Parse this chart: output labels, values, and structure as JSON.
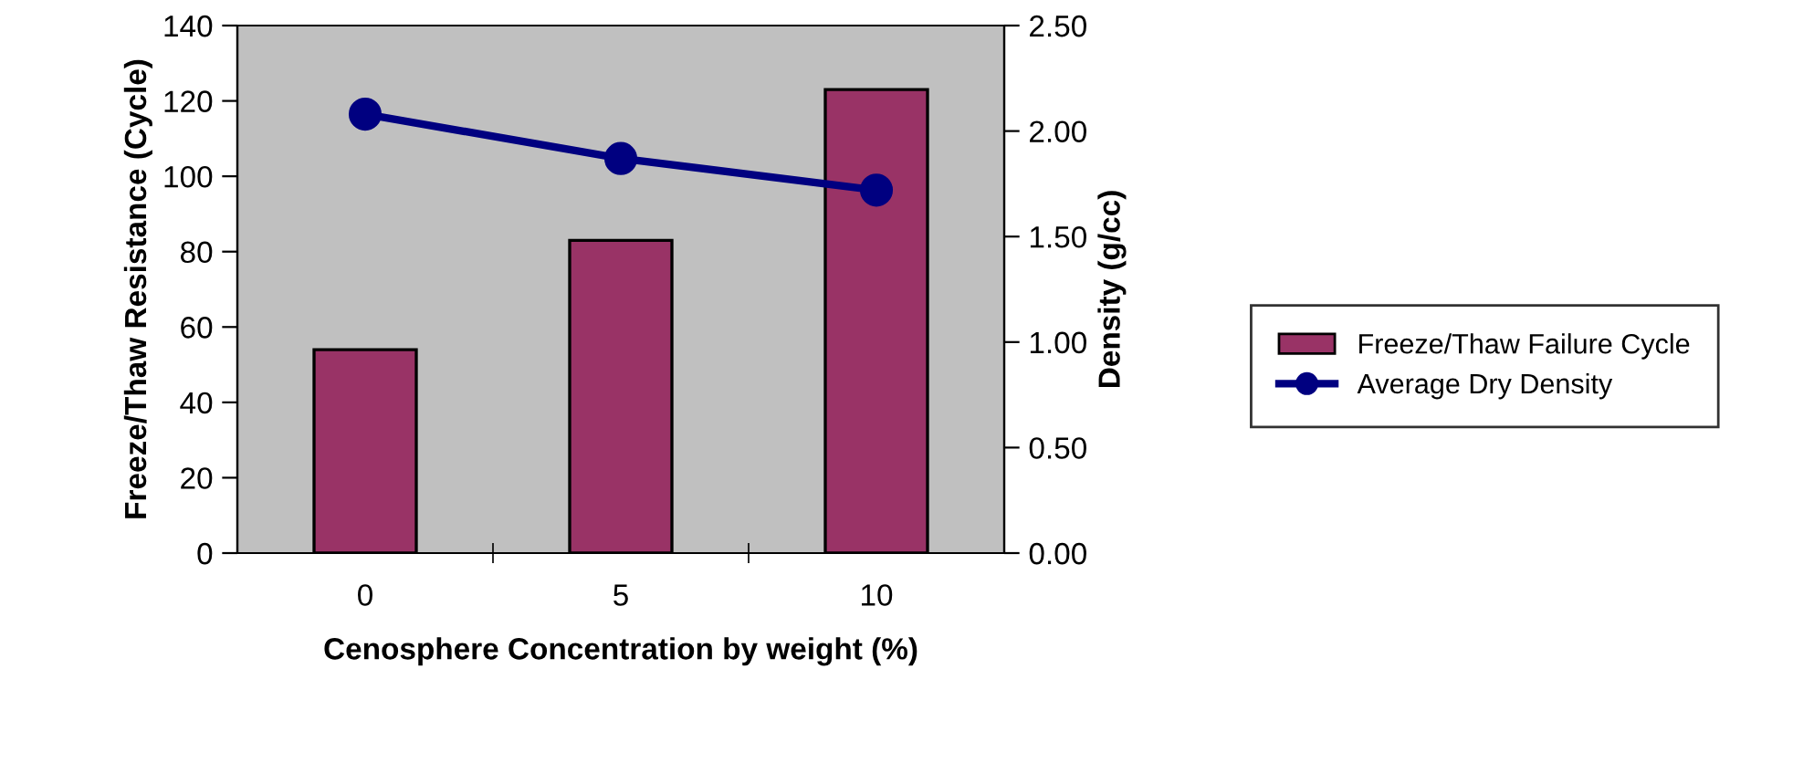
{
  "chart_data": {
    "type": "bar",
    "categories": [
      "0",
      "5",
      "10"
    ],
    "xlabel": "Cenosphere Concentration by weight (%)",
    "ylabel": "Freeze/Thaw Resistance (Cycle)",
    "y2label": "Density (g/cc)",
    "series": [
      {
        "name": "Freeze/Thaw Failure Cycle",
        "color": "#993366",
        "values": [
          54,
          83,
          123
        ]
      },
      {
        "name": "Average Dry Density",
        "type": "line",
        "color": "#000080",
        "axis": "y2",
        "marker": "circle",
        "line_style": "solid",
        "values": [
          2.08,
          1.87,
          1.72
        ]
      }
    ],
    "ylim": [
      0,
      140
    ],
    "yticks": [
      0,
      20,
      40,
      60,
      80,
      100,
      120,
      140
    ],
    "y2lim": [
      0,
      2.5
    ],
    "y2ticks": [
      {
        "value": 0,
        "label": "0.00"
      },
      {
        "value": 0.5,
        "label": "0.50"
      },
      {
        "value": 1,
        "label": "1.00"
      },
      {
        "value": 1.5,
        "label": "1.50"
      },
      {
        "value": 2,
        "label": "2.00"
      },
      {
        "value": 2.5,
        "label": "2.50"
      }
    ],
    "grid": false,
    "legend": "right"
  }
}
